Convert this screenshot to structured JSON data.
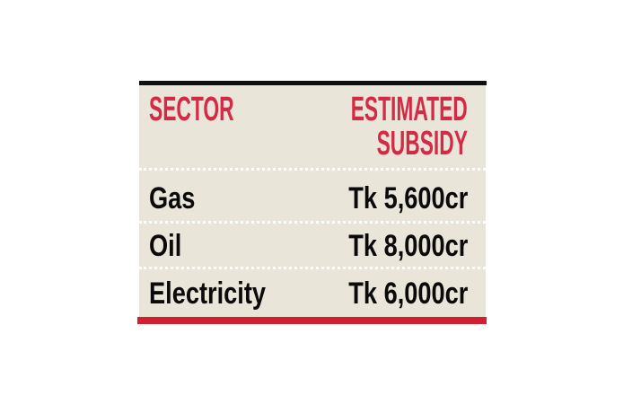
{
  "chart_data": {
    "type": "table",
    "columns": [
      "SECTOR",
      "ESTIMATED SUBSIDY"
    ],
    "header": {
      "col1": "SECTOR",
      "col2_line1": "ESTIMATED",
      "col2_line2": "SUBSIDY"
    },
    "rows": [
      {
        "sector": "Gas",
        "subsidy": "Tk 5,600cr"
      },
      {
        "sector": "Oil",
        "subsidy": "Tk 8,000cr"
      },
      {
        "sector": "Electricity",
        "subsidy": "Tk 6,000cr"
      }
    ]
  },
  "colors": {
    "header_text": "#d42a45",
    "background": "#e9e5d9",
    "top_rule": "#111111",
    "bottom_rule": "#d1202f"
  }
}
